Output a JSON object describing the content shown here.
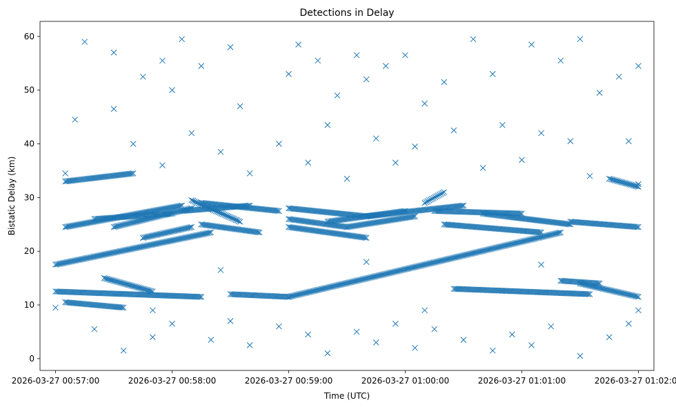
{
  "chart_data": {
    "type": "scatter",
    "title": "Detections in Delay",
    "xlabel": "Time (UTC)",
    "ylabel": "Bistatic Delay (km)",
    "marker": "x",
    "color": "#1f77b4",
    "grid": false,
    "x_range": [
      "2026-03-27 00:56:52",
      "2026-03-27 01:02:08"
    ],
    "ylim": [
      -2.2,
      62.8
    ],
    "x_ticks": [
      "2026-03-27 00:57:00",
      "2026-03-27 00:58:00",
      "2026-03-27 00:59:00",
      "2026-03-27 01:00:00",
      "2026-03-27 01:01:00",
      "2026-03-27 01:02:00"
    ],
    "y_ticks": [
      0,
      10,
      20,
      30,
      40,
      50,
      60
    ],
    "tracks": [
      {
        "x_start": "2026-03-27 00:57:00",
        "x_end": "2026-03-27 00:58:20",
        "y_start": 17.5,
        "y_end": 23.5
      },
      {
        "x_start": "2026-03-27 00:57:00",
        "x_end": "2026-03-27 00:58:15",
        "y_start": 12.5,
        "y_end": 11.5
      },
      {
        "x_start": "2026-03-27 00:57:05",
        "x_end": "2026-03-27 00:57:40",
        "y_start": 33.0,
        "y_end": 34.5
      },
      {
        "x_start": "2026-03-27 00:57:05",
        "x_end": "2026-03-27 00:58:05",
        "y_start": 24.5,
        "y_end": 28.5
      },
      {
        "x_start": "2026-03-27 00:57:05",
        "x_end": "2026-03-27 00:57:35",
        "y_start": 10.5,
        "y_end": 9.5
      },
      {
        "x_start": "2026-03-27 00:57:20",
        "x_end": "2026-03-27 00:58:00",
        "y_start": 26.0,
        "y_end": 27.0
      },
      {
        "x_start": "2026-03-27 00:57:25",
        "x_end": "2026-03-27 00:57:50",
        "y_start": 15.0,
        "y_end": 12.5
      },
      {
        "x_start": "2026-03-27 00:57:30",
        "x_end": "2026-03-27 00:58:10",
        "y_start": 24.5,
        "y_end": 28.0
      },
      {
        "x_start": "2026-03-27 00:57:45",
        "x_end": "2026-03-27 00:58:10",
        "y_start": 22.5,
        "y_end": 24.5
      },
      {
        "x_start": "2026-03-27 00:58:05",
        "x_end": "2026-03-27 00:58:40",
        "y_start": 27.5,
        "y_end": 28.5
      },
      {
        "x_start": "2026-03-27 00:58:10",
        "x_end": "2026-03-27 00:58:35",
        "y_start": 29.5,
        "y_end": 25.5
      },
      {
        "x_start": "2026-03-27 00:58:15",
        "x_end": "2026-03-27 00:58:55",
        "y_start": 29.0,
        "y_end": 27.5
      },
      {
        "x_start": "2026-03-27 00:58:15",
        "x_end": "2026-03-27 00:58:45",
        "y_start": 25.0,
        "y_end": 23.5
      },
      {
        "x_start": "2026-03-27 00:58:30",
        "x_end": "2026-03-27 00:59:00",
        "y_start": 12.0,
        "y_end": 11.5
      },
      {
        "x_start": "2026-03-27 00:59:00",
        "x_end": "2026-03-27 00:59:40",
        "y_start": 28.0,
        "y_end": 26.5
      },
      {
        "x_start": "2026-03-27 00:59:00",
        "x_end": "2026-03-27 00:59:30",
        "y_start": 26.0,
        "y_end": 24.5
      },
      {
        "x_start": "2026-03-27 00:59:00",
        "x_end": "2026-03-27 01:01:20",
        "y_start": 11.5,
        "y_end": 23.5
      },
      {
        "x_start": "2026-03-27 00:59:00",
        "x_end": "2026-03-27 00:59:40",
        "y_start": 24.5,
        "y_end": 22.5
      },
      {
        "x_start": "2026-03-27 00:59:20",
        "x_end": "2026-03-27 01:00:00",
        "y_start": 25.5,
        "y_end": 27.5
      },
      {
        "x_start": "2026-03-27 00:59:30",
        "x_end": "2026-03-27 01:00:05",
        "y_start": 24.5,
        "y_end": 26.5
      },
      {
        "x_start": "2026-03-27 00:59:40",
        "x_end": "2026-03-27 01:00:30",
        "y_start": 26.5,
        "y_end": 28.5
      },
      {
        "x_start": "2026-03-27 01:00:10",
        "x_end": "2026-03-27 01:00:20",
        "y_start": 29.0,
        "y_end": 31.0
      },
      {
        "x_start": "2026-03-27 01:00:15",
        "x_end": "2026-03-27 01:01:00",
        "y_start": 27.5,
        "y_end": 27.0
      },
      {
        "x_start": "2026-03-27 01:00:20",
        "x_end": "2026-03-27 01:01:10",
        "y_start": 25.0,
        "y_end": 23.5
      },
      {
        "x_start": "2026-03-27 01:00:25",
        "x_end": "2026-03-27 01:01:35",
        "y_start": 13.0,
        "y_end": 12.0
      },
      {
        "x_start": "2026-03-27 01:00:40",
        "x_end": "2026-03-27 01:01:25",
        "y_start": 27.0,
        "y_end": 25.0
      },
      {
        "x_start": "2026-03-27 01:01:20",
        "x_end": "2026-03-27 01:01:40",
        "y_start": 14.5,
        "y_end": 14.0
      },
      {
        "x_start": "2026-03-27 01:01:25",
        "x_end": "2026-03-27 01:02:00",
        "y_start": 25.5,
        "y_end": 24.5
      },
      {
        "x_start": "2026-03-27 01:01:30",
        "x_end": "2026-03-27 01:02:00",
        "y_start": 14.0,
        "y_end": 11.5
      },
      {
        "x_start": "2026-03-27 01:01:45",
        "x_end": "2026-03-27 01:02:00",
        "y_start": 33.5,
        "y_end": 32.0
      }
    ],
    "points": [
      [
        "00:57:15",
        59.0
      ],
      [
        "00:57:30",
        57.0
      ],
      [
        "00:57:45",
        52.5
      ],
      [
        "00:57:30",
        46.5
      ],
      [
        "00:58:00",
        50.0
      ],
      [
        "00:57:55",
        55.5
      ],
      [
        "00:58:05",
        59.5
      ],
      [
        "00:58:15",
        54.5
      ],
      [
        "00:58:30",
        58.0
      ],
      [
        "00:58:35",
        47.0
      ],
      [
        "00:59:00",
        53.0
      ],
      [
        "00:59:05",
        58.5
      ],
      [
        "00:59:15",
        55.5
      ],
      [
        "00:59:25",
        49.0
      ],
      [
        "00:59:35",
        56.5
      ],
      [
        "00:59:40",
        52.0
      ],
      [
        "00:59:50",
        54.5
      ],
      [
        "01:00:00",
        56.5
      ],
      [
        "01:00:10",
        47.5
      ],
      [
        "01:00:20",
        51.5
      ],
      [
        "01:00:35",
        59.5
      ],
      [
        "01:00:45",
        53.0
      ],
      [
        "01:01:05",
        58.5
      ],
      [
        "01:01:20",
        55.5
      ],
      [
        "01:01:30",
        59.5
      ],
      [
        "01:01:40",
        49.5
      ],
      [
        "01:01:50",
        52.5
      ],
      [
        "01:02:00",
        54.5
      ],
      [
        "00:57:10",
        44.5
      ],
      [
        "00:57:40",
        40.0
      ],
      [
        "00:57:55",
        36.0
      ],
      [
        "00:58:10",
        42.0
      ],
      [
        "00:58:25",
        38.5
      ],
      [
        "00:58:40",
        34.5
      ],
      [
        "00:58:55",
        40.0
      ],
      [
        "00:59:10",
        36.5
      ],
      [
        "00:59:20",
        43.5
      ],
      [
        "00:59:30",
        33.5
      ],
      [
        "00:59:45",
        41.0
      ],
      [
        "00:59:55",
        36.5
      ],
      [
        "01:00:05",
        39.5
      ],
      [
        "01:00:25",
        42.5
      ],
      [
        "01:00:40",
        35.5
      ],
      [
        "01:00:50",
        43.5
      ],
      [
        "01:01:00",
        37.0
      ],
      [
        "01:01:10",
        42.0
      ],
      [
        "01:01:25",
        40.5
      ],
      [
        "01:01:35",
        34.0
      ],
      [
        "01:01:55",
        40.5
      ],
      [
        "00:57:05",
        34.5
      ],
      [
        "01:02:00",
        32.5
      ],
      [
        "00:57:20",
        5.5
      ],
      [
        "00:57:35",
        1.5
      ],
      [
        "00:57:50",
        4.0
      ],
      [
        "00:58:00",
        6.5
      ],
      [
        "00:58:20",
        3.5
      ],
      [
        "00:58:30",
        7.0
      ],
      [
        "00:58:40",
        2.5
      ],
      [
        "00:58:55",
        6.0
      ],
      [
        "00:59:10",
        4.5
      ],
      [
        "00:59:20",
        1.0
      ],
      [
        "00:59:35",
        5.0
      ],
      [
        "00:59:45",
        3.0
      ],
      [
        "00:59:55",
        6.5
      ],
      [
        "01:00:05",
        2.0
      ],
      [
        "01:00:15",
        5.5
      ],
      [
        "01:00:30",
        3.5
      ],
      [
        "01:00:45",
        1.5
      ],
      [
        "01:00:55",
        4.5
      ],
      [
        "01:01:05",
        2.5
      ],
      [
        "01:01:15",
        6.0
      ],
      [
        "01:01:30",
        0.5
      ],
      [
        "01:01:45",
        4.0
      ],
      [
        "01:01:55",
        6.5
      ],
      [
        "00:57:00",
        9.5
      ],
      [
        "00:57:50",
        9.0
      ],
      [
        "00:58:25",
        16.5
      ],
      [
        "00:59:40",
        18.0
      ],
      [
        "01:00:10",
        9.0
      ],
      [
        "01:01:10",
        17.5
      ],
      [
        "01:02:00",
        9.0
      ]
    ],
    "scatter_note": ""
  }
}
